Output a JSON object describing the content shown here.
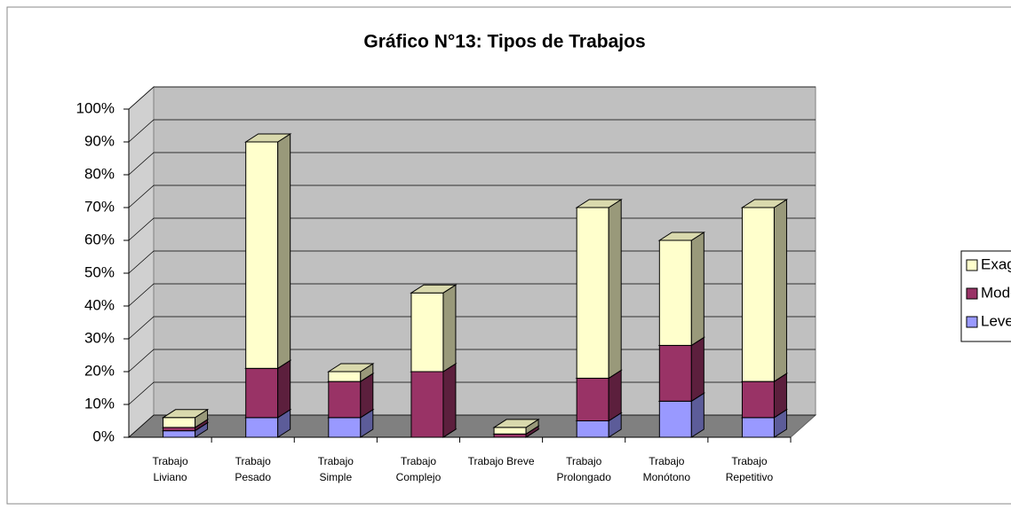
{
  "chart_data": {
    "type": "bar3d_stacked",
    "title": "Gráfico N°13: Tipos de Trabajos",
    "categories": [
      "Trabajo Liviano",
      "Trabajo Pesado",
      "Trabajo Simple",
      "Trabajo Complejo",
      "Trabajo Breve",
      "Trabajo Prolongado",
      "Trabajo Monótono",
      "Trabajo Repetitivo"
    ],
    "series": [
      {
        "name": "Leve",
        "color": "#9999ff",
        "values": [
          2,
          6,
          6,
          0,
          0,
          5,
          11,
          6
        ]
      },
      {
        "name": "Moderada",
        "color": "#993366",
        "values": [
          1,
          15,
          11,
          20,
          1,
          13,
          17,
          11
        ]
      },
      {
        "name": "Exagerada",
        "color": "#ffffcc",
        "values": [
          3,
          69,
          3,
          24,
          2,
          52,
          32,
          53
        ]
      }
    ],
    "ylim": [
      0,
      100
    ],
    "yticks": [
      {
        "value": 0,
        "label": "0%"
      },
      {
        "value": 10,
        "label": "10%"
      },
      {
        "value": 20,
        "label": "20%"
      },
      {
        "value": 30,
        "label": "30%"
      },
      {
        "value": 40,
        "label": "40%"
      },
      {
        "value": 50,
        "label": "50%"
      },
      {
        "value": 60,
        "label": "60%"
      },
      {
        "value": 70,
        "label": "70%"
      },
      {
        "value": 80,
        "label": "80%"
      },
      {
        "value": 90,
        "label": "90%"
      },
      {
        "value": 100,
        "label": "100%"
      }
    ],
    "grid": true,
    "legend": "right"
  }
}
